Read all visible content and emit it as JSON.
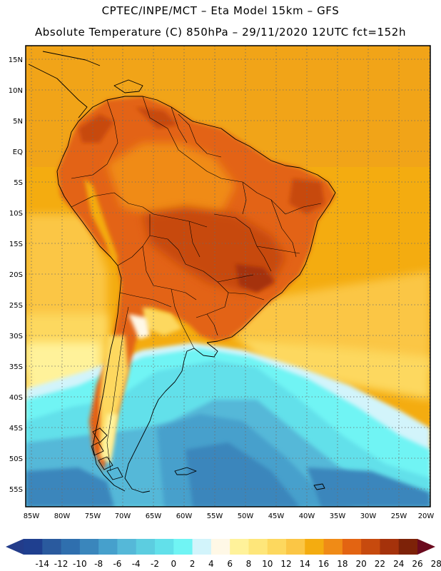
{
  "header": {
    "line1": "CPTEC/INPE/MCT –  Eta Model 15km – GFS",
    "line2": "Absolute Temperature (C) 850hPa – 29/11/2020 12UTC fct=152h"
  },
  "axes": {
    "lat_labels": [
      "15N",
      "10N",
      "5N",
      "EQ",
      "5S",
      "10S",
      "15S",
      "20S",
      "25S",
      "30S",
      "35S",
      "40S",
      "45S",
      "50S",
      "55S"
    ],
    "lon_labels": [
      "85W",
      "80W",
      "75W",
      "70W",
      "65W",
      "60W",
      "55W",
      "50W",
      "45W",
      "40W",
      "35W",
      "30W",
      "25W",
      "20W"
    ]
  },
  "colorbar": {
    "labels": [
      "-14",
      "-12",
      "-10",
      "-8",
      "-6",
      "-4",
      "-2",
      "0",
      "2",
      "4",
      "6",
      "8",
      "10",
      "12",
      "14",
      "16",
      "18",
      "20",
      "22",
      "24",
      "26",
      "28"
    ],
    "colors": [
      "#1f3f8f",
      "#2a5a9e",
      "#2f6fae",
      "#3a86bc",
      "#46a0cc",
      "#55b8d8",
      "#5ccde0",
      "#62e0ea",
      "#70f4f4",
      "#d2f4fb",
      "#fff8e6",
      "#fff29a",
      "#fee67a",
      "#fdd85e",
      "#fbc645",
      "#f4ac10",
      "#f08b16",
      "#e36412",
      "#c74a0e",
      "#a5320b",
      "#7d2208"
    ],
    "under_color": "#233c8a",
    "over_color": "#6b0a1e"
  }
}
